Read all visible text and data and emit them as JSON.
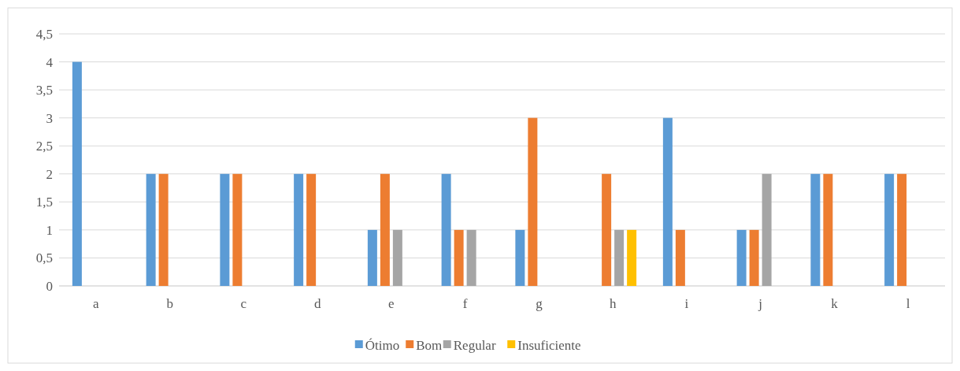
{
  "chart_data": {
    "type": "bar",
    "categories": [
      "a",
      "b",
      "c",
      "d",
      "e",
      "f",
      "g",
      "h",
      "i",
      "j",
      "k",
      "l"
    ],
    "series": [
      {
        "name": "Ótimo",
        "color": "#5b9bd5",
        "values": [
          4,
          2,
          2,
          2,
          1,
          2,
          1,
          0,
          3,
          1,
          2,
          2
        ]
      },
      {
        "name": "Bom",
        "color": "#ed7d31",
        "values": [
          0,
          2,
          2,
          2,
          2,
          1,
          3,
          2,
          1,
          1,
          2,
          2
        ]
      },
      {
        "name": "Regular",
        "color": "#a5a5a5",
        "values": [
          0,
          0,
          0,
          0,
          1,
          1,
          0,
          1,
          0,
          2,
          0,
          0
        ]
      },
      {
        "name": "Insuficiente",
        "color": "#ffc000",
        "values": [
          0,
          0,
          0,
          0,
          0,
          0,
          0,
          1,
          0,
          0,
          0,
          0
        ]
      }
    ],
    "ylim": [
      0,
      4.5
    ],
    "yticks": [
      0,
      {
        "value": 0.5,
        "label": "0,5"
      },
      1,
      {
        "value": 1.5,
        "label": "1,5"
      },
      2,
      {
        "value": 2.5,
        "label": "2,5"
      },
      3,
      {
        "value": 3.5,
        "label": "3,5"
      },
      4,
      {
        "value": 4.5,
        "label": "4,5"
      }
    ],
    "grid": "y",
    "legend": "bottom"
  }
}
